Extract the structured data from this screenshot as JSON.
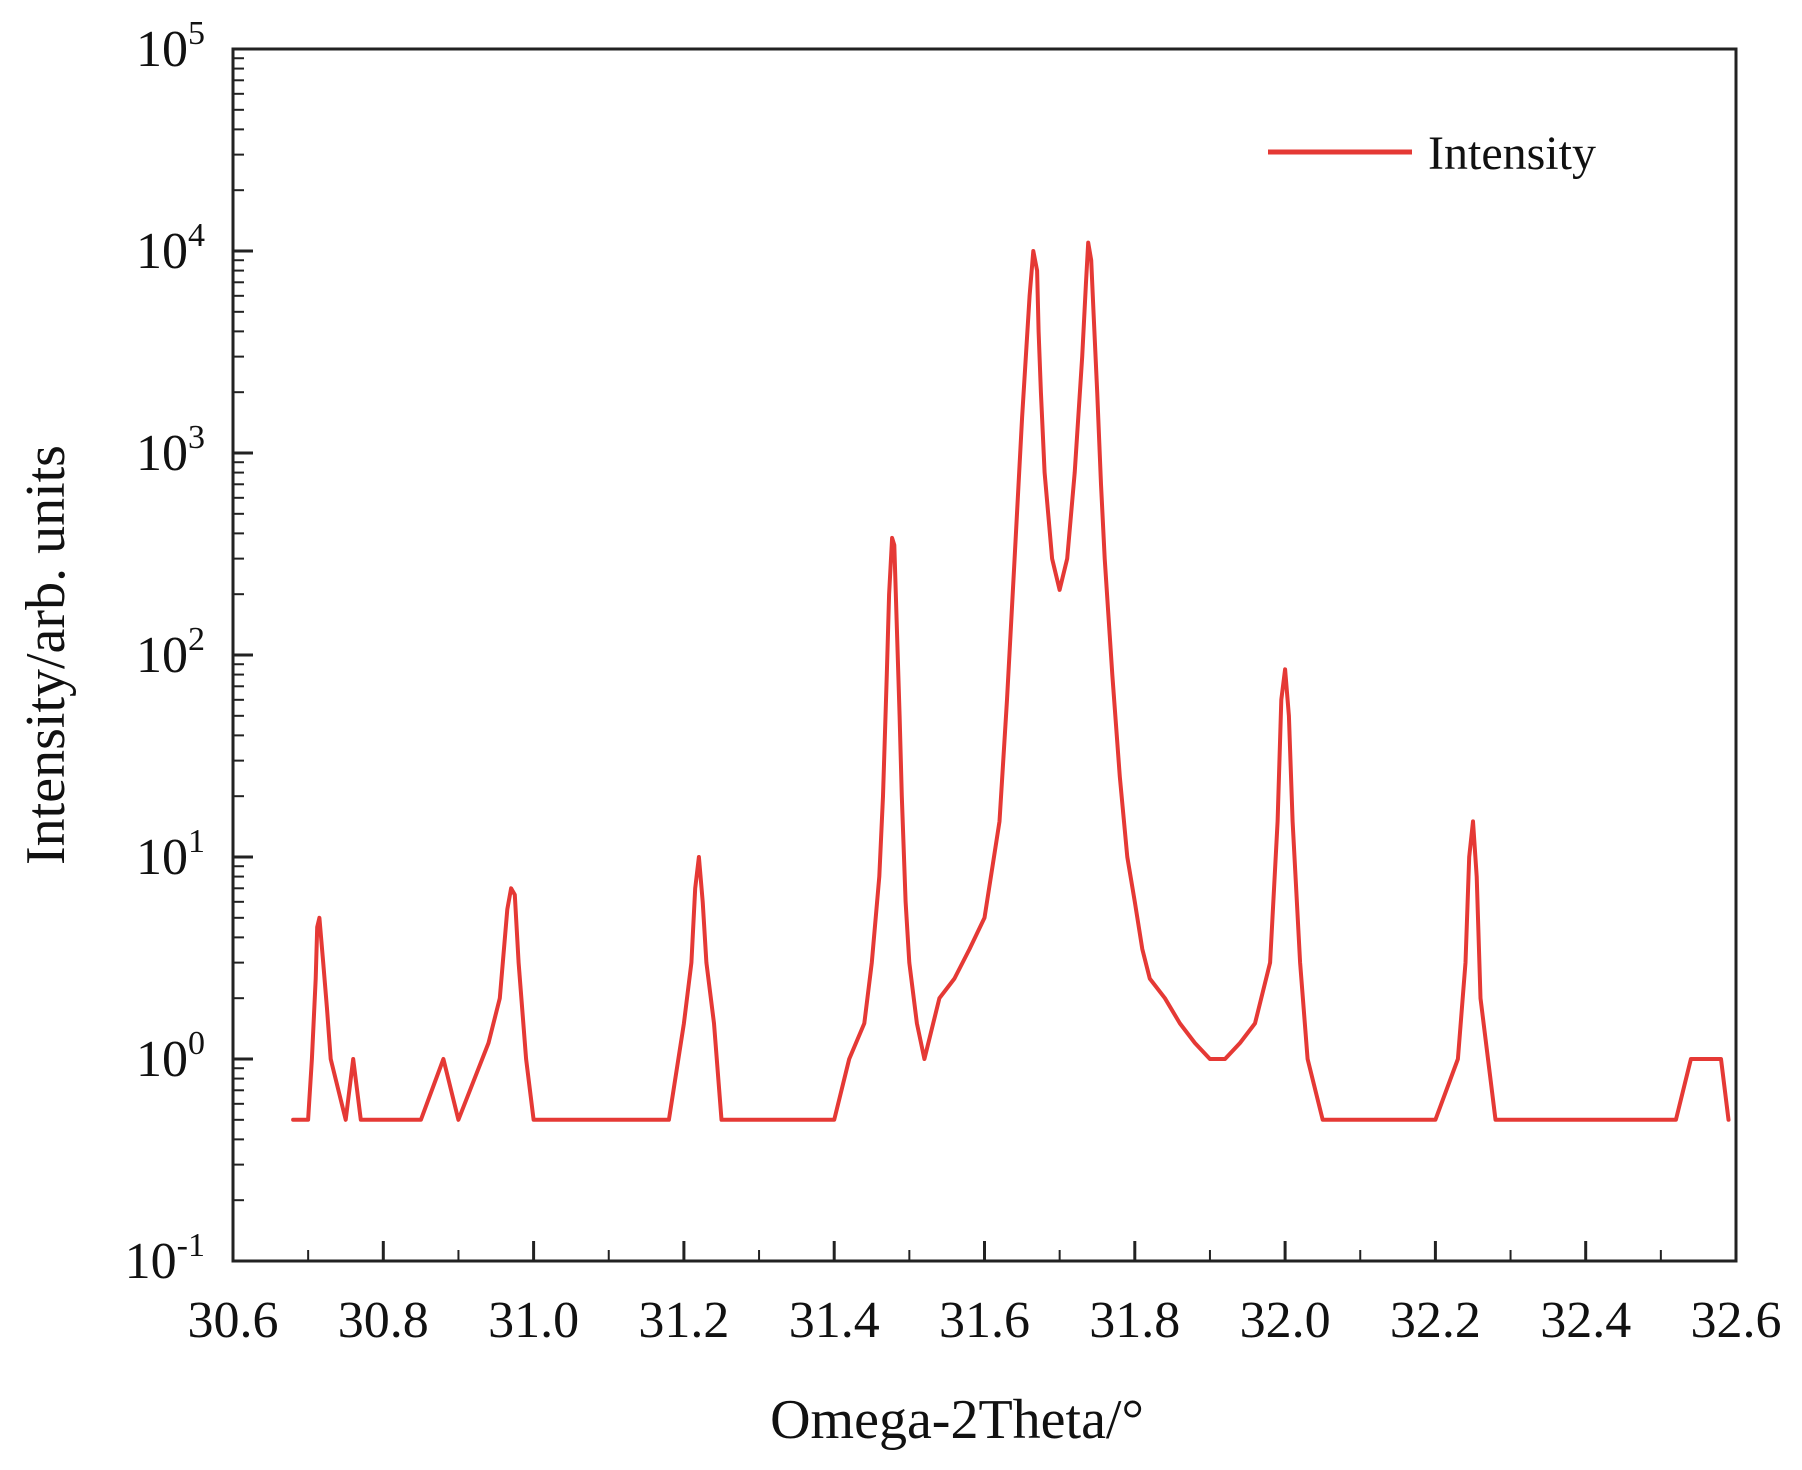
{
  "chart_data": {
    "type": "line",
    "title": "",
    "xlabel": "Omega-2Theta/°",
    "ylabel": "Intensity/arb. units",
    "xlim": [
      30.6,
      32.6
    ],
    "ylim": [
      0.1,
      100000
    ],
    "yscale": "log",
    "grid": false,
    "legend_position": "top-right",
    "x_tick_labels": [
      "30.6",
      "30.8",
      "31.0",
      "31.2",
      "31.4",
      "31.6",
      "31.8",
      "32.0",
      "32.2",
      "32.4",
      "32.6"
    ],
    "y_tick_labels": [
      {
        "base": "10",
        "exp": "-1"
      },
      {
        "base": "10",
        "exp": "0"
      },
      {
        "base": "10",
        "exp": "1"
      },
      {
        "base": "10",
        "exp": "2"
      },
      {
        "base": "10",
        "exp": "3"
      },
      {
        "base": "10",
        "exp": "4"
      },
      {
        "base": "10",
        "exp": "5"
      }
    ],
    "series": [
      {
        "name": "Intensity",
        "color": "#e53935",
        "x": [
          30.68,
          30.7,
          30.705,
          30.71,
          30.712,
          30.715,
          30.72,
          30.725,
          30.73,
          30.75,
          30.76,
          30.77,
          30.8,
          30.85,
          30.88,
          30.9,
          30.94,
          30.955,
          30.965,
          30.97,
          30.975,
          30.98,
          30.99,
          31.0,
          31.05,
          31.1,
          31.15,
          31.18,
          31.2,
          31.21,
          31.215,
          31.22,
          31.225,
          31.23,
          31.24,
          31.25,
          31.3,
          31.35,
          31.4,
          31.42,
          31.44,
          31.45,
          31.46,
          31.465,
          31.47,
          31.473,
          31.477,
          31.48,
          31.483,
          31.487,
          31.49,
          31.495,
          31.5,
          31.51,
          31.52,
          31.54,
          31.56,
          31.58,
          31.6,
          31.62,
          31.63,
          31.64,
          31.65,
          31.66,
          31.665,
          31.67,
          31.672,
          31.675,
          31.68,
          31.69,
          31.7,
          31.71,
          31.72,
          31.73,
          31.735,
          31.738,
          31.742,
          31.745,
          31.75,
          31.755,
          31.76,
          31.77,
          31.78,
          31.79,
          31.8,
          31.81,
          31.82,
          31.84,
          31.86,
          31.88,
          31.9,
          31.92,
          31.94,
          31.96,
          31.98,
          31.99,
          31.995,
          32.0,
          32.005,
          32.01,
          32.02,
          32.03,
          32.05,
          32.1,
          32.15,
          32.2,
          32.23,
          32.24,
          32.245,
          32.25,
          32.255,
          32.26,
          32.27,
          32.28,
          32.3,
          32.35,
          32.4,
          32.45,
          32.5,
          32.52,
          32.54,
          32.56,
          32.58,
          32.59
        ],
        "y": [
          0.5,
          0.5,
          1.0,
          2.5,
          4.5,
          5.0,
          3.0,
          1.8,
          1.0,
          0.5,
          1.0,
          0.5,
          0.5,
          0.5,
          1.0,
          0.5,
          1.2,
          2.0,
          5.5,
          7.0,
          6.5,
          3.0,
          1.0,
          0.5,
          0.5,
          0.5,
          0.5,
          0.5,
          1.5,
          3.0,
          7.0,
          10.0,
          6.0,
          3.0,
          1.5,
          0.5,
          0.5,
          0.5,
          0.5,
          1.0,
          1.5,
          3.0,
          8.0,
          20.0,
          80.0,
          200.0,
          380.0,
          350.0,
          150.0,
          50.0,
          20.0,
          6.0,
          3.0,
          1.5,
          1.0,
          2.0,
          2.5,
          3.5,
          5.0,
          15.0,
          60.0,
          300.0,
          1500.0,
          6000.0,
          10000.0,
          8000.0,
          4000.0,
          2000.0,
          800.0,
          300.0,
          210.0,
          300.0,
          800.0,
          3000.0,
          7000.0,
          11000.0,
          9000.0,
          5000.0,
          2000.0,
          700.0,
          300.0,
          80.0,
          25.0,
          10.0,
          6.0,
          3.5,
          2.5,
          2.0,
          1.5,
          1.2,
          1.0,
          1.0,
          1.2,
          1.5,
          3.0,
          15.0,
          60.0,
          85.0,
          50.0,
          15.0,
          3.0,
          1.0,
          0.5,
          0.5,
          0.5,
          0.5,
          1.0,
          3.0,
          10.0,
          15.0,
          8.0,
          2.0,
          1.0,
          0.5,
          0.5,
          0.5,
          0.5,
          0.5,
          0.5,
          0.5,
          1.0,
          1.0,
          1.0,
          0.5
        ]
      }
    ]
  }
}
